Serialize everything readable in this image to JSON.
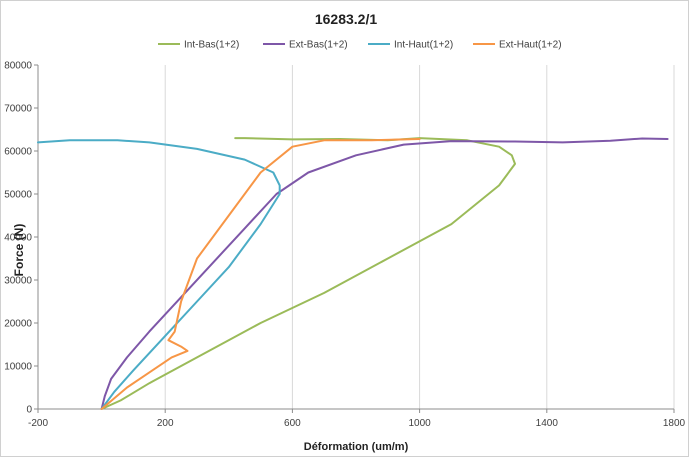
{
  "chart_data": {
    "type": "line",
    "title": "16283.2/1",
    "xlabel": "Déformation (um/m)",
    "ylabel": "Force (N)",
    "xlim": [
      -200,
      1800
    ],
    "ylim": [
      0,
      80000
    ],
    "x_ticks": [
      "-200",
      "200",
      "600",
      "1000",
      "1400",
      "1800"
    ],
    "x_tick_values": [
      -200,
      200,
      600,
      1000,
      1400,
      1800
    ],
    "y_ticks": [
      "0",
      "10000",
      "20000",
      "30000",
      "40000",
      "50000",
      "60000",
      "70000",
      "80000"
    ],
    "y_tick_values": [
      0,
      10000,
      20000,
      30000,
      40000,
      50000,
      60000,
      70000,
      80000
    ],
    "grid": "vertical",
    "legend_position": "top",
    "series": [
      {
        "name": "Int-Bas(1+2)",
        "color": "#9bbb59",
        "points": [
          [
            0,
            0
          ],
          [
            60,
            2000
          ],
          [
            150,
            6000
          ],
          [
            300,
            12000
          ],
          [
            500,
            20000
          ],
          [
            700,
            27000
          ],
          [
            900,
            35000
          ],
          [
            1100,
            43000
          ],
          [
            1250,
            52000
          ],
          [
            1300,
            57000
          ],
          [
            1290,
            59000
          ],
          [
            1250,
            61000
          ],
          [
            1150,
            62500
          ],
          [
            1000,
            63000
          ],
          [
            900,
            62500
          ],
          [
            750,
            62800
          ],
          [
            600,
            62700
          ],
          [
            450,
            63000
          ],
          [
            420,
            63000
          ]
        ]
      },
      {
        "name": "Ext-Bas(1+2)",
        "color": "#7e57a8",
        "points": [
          [
            0,
            0
          ],
          [
            10,
            3000
          ],
          [
            30,
            7000
          ],
          [
            80,
            12000
          ],
          [
            150,
            18000
          ],
          [
            250,
            26000
          ],
          [
            350,
            34000
          ],
          [
            450,
            42000
          ],
          [
            550,
            50000
          ],
          [
            650,
            55000
          ],
          [
            800,
            59000
          ],
          [
            950,
            61500
          ],
          [
            1100,
            62300
          ],
          [
            1300,
            62200
          ],
          [
            1450,
            62000
          ],
          [
            1600,
            62400
          ],
          [
            1700,
            62900
          ],
          [
            1780,
            62800
          ]
        ]
      },
      {
        "name": "Int-Haut(1+2)",
        "color": "#4bacc6",
        "points": [
          [
            0,
            0
          ],
          [
            40,
            4000
          ],
          [
            100,
            9000
          ],
          [
            200,
            17000
          ],
          [
            300,
            25000
          ],
          [
            400,
            33000
          ],
          [
            500,
            43000
          ],
          [
            560,
            50000
          ],
          [
            560,
            52000
          ],
          [
            540,
            55000
          ],
          [
            450,
            58000
          ],
          [
            300,
            60500
          ],
          [
            150,
            62000
          ],
          [
            50,
            62500
          ],
          [
            -100,
            62500
          ],
          [
            -200,
            62000
          ]
        ]
      },
      {
        "name": "Ext-Haut(1+2)",
        "color": "#f79646",
        "points": [
          [
            0,
            0
          ],
          [
            80,
            5000
          ],
          [
            160,
            9000
          ],
          [
            220,
            12000
          ],
          [
            270,
            13500
          ],
          [
            250,
            14500
          ],
          [
            210,
            16000
          ],
          [
            230,
            18000
          ],
          [
            250,
            25000
          ],
          [
            300,
            35000
          ],
          [
            400,
            45000
          ],
          [
            500,
            55000
          ],
          [
            600,
            61000
          ],
          [
            700,
            62500
          ],
          [
            850,
            62500
          ],
          [
            1000,
            62800
          ]
        ]
      }
    ]
  }
}
